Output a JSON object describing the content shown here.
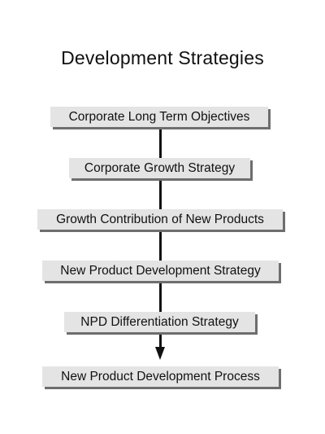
{
  "diagram": {
    "title": "Development Strategies",
    "steps": [
      "Corporate Long Term Objectives",
      "Corporate Growth Strategy",
      "Growth Contribution of New Products",
      "New Product Development Strategy",
      "NPD Differentiation Strategy",
      "New Product Development Process"
    ]
  }
}
